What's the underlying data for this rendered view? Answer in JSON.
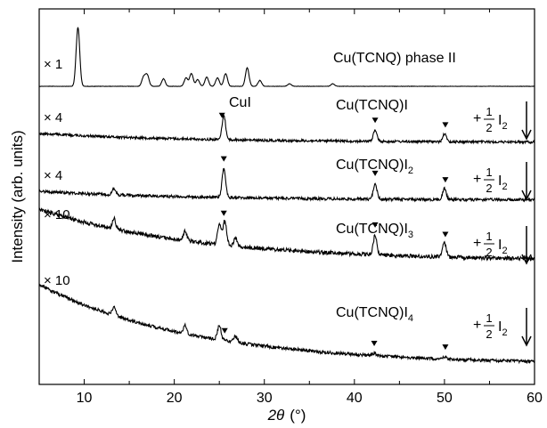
{
  "chart_data": {
    "type": "line",
    "xlabel": "2θ (°)",
    "xlabel_symbol": "2θ",
    "xlabel_unit": "(°)",
    "ylabel": "Intensity (arb. units)",
    "xlim": [
      5,
      60
    ],
    "xticks": [
      "10",
      "20",
      "30",
      "40",
      "50",
      "60"
    ],
    "grid": false,
    "legend": "none",
    "annotation_cui": "CuI",
    "series": [
      {
        "name": "Cu(TCNQ) phase II",
        "label_main": "Cu(TCNQ)  phase II",
        "label_sub": "",
        "multiplier": "× 1",
        "baseline": 0.95,
        "peaks": [
          [
            9.3,
            7.0
          ],
          [
            16.6,
            1.1
          ],
          [
            17.0,
            1.3
          ],
          [
            18.8,
            0.9
          ],
          [
            21.3,
            1.0
          ],
          [
            21.9,
            1.5
          ],
          [
            22.6,
            0.8
          ],
          [
            23.6,
            1.1
          ],
          [
            24.8,
            1.0
          ],
          [
            25.7,
            1.5
          ],
          [
            28.1,
            2.2
          ],
          [
            29.5,
            0.7
          ],
          [
            32.8,
            0.3
          ],
          [
            37.6,
            0.3
          ]
        ],
        "markers": [],
        "step": false
      },
      {
        "name": "Cu(TCNQ)I",
        "label_main": "Cu(TCNQ)I",
        "label_sub": "",
        "multiplier": "× 4",
        "baseline": 0.85,
        "peaks": [
          [
            25.5,
            3.0
          ],
          [
            42.3,
            1.4
          ],
          [
            50.0,
            1.0
          ]
        ],
        "markers": [
          25.3,
          42.3,
          50.1
        ],
        "step": true
      },
      {
        "name": "Cu(TCNQ)I2",
        "label_main": "Cu(TCNQ)I",
        "label_sub": "2",
        "multiplier": "× 4",
        "baseline": 0.9,
        "peaks": [
          [
            13.3,
            0.7
          ],
          [
            25.5,
            3.6
          ],
          [
            42.3,
            2.0
          ],
          [
            50.0,
            1.4
          ]
        ],
        "markers": [
          25.5,
          42.3,
          50.1
        ],
        "step": true
      },
      {
        "name": "Cu(TCNQ)I3",
        "label_main": "Cu(TCNQ)I",
        "label_sub": "3",
        "multiplier": "× 10",
        "baseline": 2.6,
        "peaks": [
          [
            13.3,
            1.3
          ],
          [
            21.2,
            1.2
          ],
          [
            25.0,
            2.5
          ],
          [
            25.6,
            3.0
          ],
          [
            26.8,
            1.0
          ],
          [
            42.3,
            2.5
          ],
          [
            50.0,
            1.8
          ]
        ],
        "markers": [
          25.5,
          42.3,
          50.1
        ],
        "step": true
      },
      {
        "name": "Cu(TCNQ)I4",
        "label_main": "Cu(TCNQ)I",
        "label_sub": "4",
        "multiplier": "× 10",
        "baseline": 3.0,
        "peaks": [
          [
            13.3,
            1.0
          ],
          [
            21.2,
            1.0
          ],
          [
            25.0,
            1.8
          ],
          [
            26.8,
            0.8
          ],
          [
            42.2,
            0.3
          ],
          [
            50.0,
            0.3
          ]
        ],
        "markers": [
          25.6,
          42.2,
          50.1
        ],
        "step": true
      }
    ],
    "step_label": {
      "plus": "+",
      "numerator": "1",
      "denominator": "2",
      "reagent": "I",
      "reagent_sub": "2"
    }
  }
}
